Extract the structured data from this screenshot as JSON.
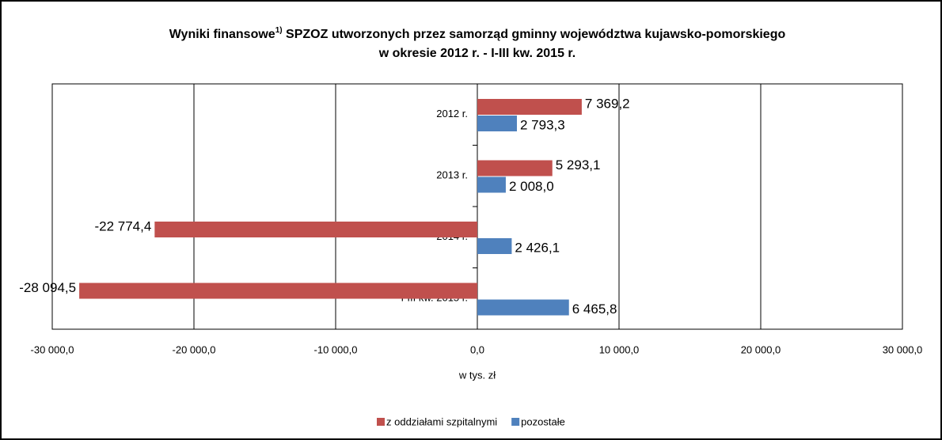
{
  "chart_data": {
    "type": "bar",
    "orientation": "horizontal",
    "title": [
      "Wyniki finansowe",
      "SPZOZ utworzonych przez samorząd gminny województwa kujawsko-pomorskiego",
      "w okresie 2012 r. - I-III kw. 2015 r."
    ],
    "title_note": "1)",
    "xlabel": "w tys. zł",
    "categories": [
      "2012 r.",
      "2013 r.",
      "2014 r.",
      "I-III kw. 2015 r."
    ],
    "series": [
      {
        "name": "z oddziałami szpitalnymi",
        "color": "#c0504d",
        "values": [
          7369.2,
          5293.1,
          -22774.4,
          -28094.5
        ],
        "value_labels": [
          "7 369,2",
          "5 293,1",
          "-22 774,4",
          "-28 094,5"
        ]
      },
      {
        "name": "pozostałe",
        "color": "#4f81bd",
        "values": [
          2793.3,
          2008.0,
          2426.1,
          6465.8
        ],
        "value_labels": [
          "2 793,3",
          "2 008,0",
          "2 426,1",
          "6 465,8"
        ]
      }
    ],
    "xlim": [
      -30000,
      30000
    ],
    "xticks": [
      {
        "value": -30000,
        "label": "-30 000,0"
      },
      {
        "value": -20000,
        "label": "-20 000,0"
      },
      {
        "value": -10000,
        "label": "-10 000,0"
      },
      {
        "value": 0,
        "label": "0,0"
      },
      {
        "value": 10000,
        "label": "10 000,0"
      },
      {
        "value": 20000,
        "label": "20 000,0"
      },
      {
        "value": 30000,
        "label": "30 000,0"
      }
    ],
    "grid": true,
    "legend": "bottom"
  }
}
